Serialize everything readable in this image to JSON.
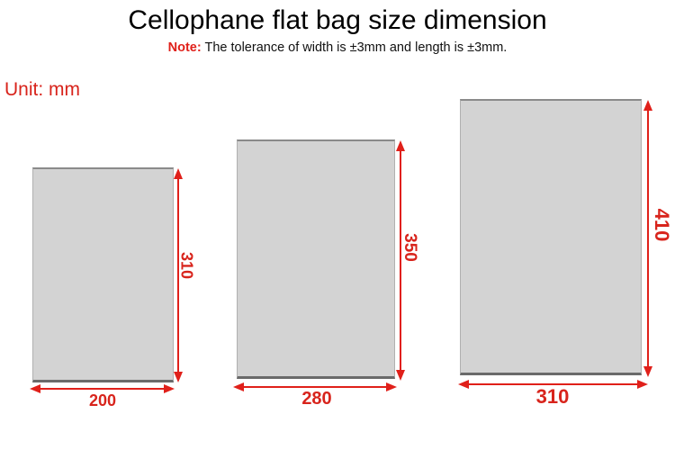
{
  "header": {
    "title": "Cellophane flat bag size dimension",
    "note_label": "Note:",
    "note_text": " The tolerance of width is  ±3mm and length is ±3mm."
  },
  "unit_label": "Unit: mm",
  "colors": {
    "accent": "#d8241c",
    "bag_fill": "#d3d3d3"
  },
  "bags": [
    {
      "width": "200",
      "length": "310"
    },
    {
      "width": "280",
      "length": "350"
    },
    {
      "width": "310",
      "length": "410"
    }
  ]
}
